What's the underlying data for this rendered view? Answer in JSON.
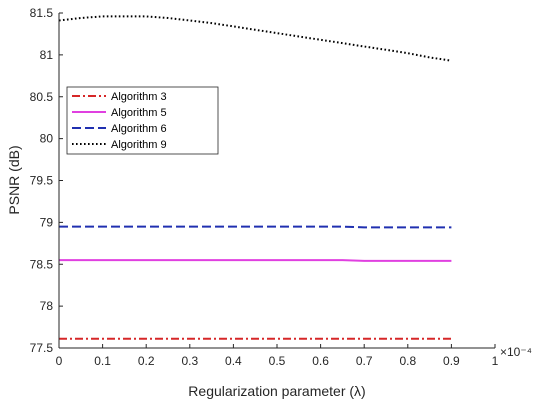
{
  "chart_data": {
    "type": "line",
    "title": "",
    "xlabel": "Regularization parameter (λ)",
    "ylabel": "PSNR (dB)",
    "x_multiplier": "×10⁻⁴",
    "xlim": [
      0,
      1
    ],
    "ylim": [
      77.5,
      81.5
    ],
    "x_ticks": [
      0,
      0.1,
      0.2,
      0.3,
      0.4,
      0.5,
      0.6,
      0.7,
      0.8,
      0.9,
      1
    ],
    "x_tick_labels": [
      "0",
      "0.1",
      "0.2",
      "0.3",
      "0.4",
      "0.5",
      "0.6",
      "0.7",
      "0.8",
      "0.9",
      "1"
    ],
    "y_ticks": [
      77.5,
      78,
      78.5,
      79,
      79.5,
      80,
      80.5,
      81,
      81.5
    ],
    "y_tick_labels": [
      "77.5",
      "78",
      "78.5",
      "79",
      "79.5",
      "80",
      "80.5",
      "81",
      "81.5"
    ],
    "grid": false,
    "legend_position": "upper-left",
    "x": [
      0,
      0.05,
      0.1,
      0.15,
      0.2,
      0.25,
      0.3,
      0.35,
      0.4,
      0.45,
      0.5,
      0.55,
      0.6,
      0.65,
      0.7,
      0.75,
      0.8,
      0.85,
      0.9
    ],
    "series": [
      {
        "name": "Algorithm 3",
        "color": "#d62728",
        "dash": "dashdot",
        "values": [
          77.61,
          77.61,
          77.61,
          77.61,
          77.61,
          77.61,
          77.61,
          77.61,
          77.61,
          77.61,
          77.61,
          77.61,
          77.61,
          77.61,
          77.61,
          77.61,
          77.61,
          77.61,
          77.61
        ]
      },
      {
        "name": "Algorithm 5",
        "color": "#e040e0",
        "dash": "solid",
        "values": [
          78.55,
          78.55,
          78.55,
          78.55,
          78.55,
          78.55,
          78.55,
          78.55,
          78.55,
          78.55,
          78.55,
          78.55,
          78.55,
          78.55,
          78.54,
          78.54,
          78.54,
          78.54,
          78.54
        ]
      },
      {
        "name": "Algorithm 6",
        "color": "#2030b0",
        "dash": "dashed",
        "values": [
          78.95,
          78.95,
          78.95,
          78.95,
          78.95,
          78.95,
          78.95,
          78.95,
          78.95,
          78.95,
          78.95,
          78.95,
          78.95,
          78.95,
          78.94,
          78.94,
          78.94,
          78.94,
          78.94
        ]
      },
      {
        "name": "Algorithm 9",
        "color": "#000000",
        "dash": "dotted",
        "values": [
          81.41,
          81.44,
          81.46,
          81.46,
          81.46,
          81.44,
          81.41,
          81.38,
          81.34,
          81.3,
          81.26,
          81.22,
          81.18,
          81.14,
          81.1,
          81.06,
          81.02,
          80.97,
          80.93
        ]
      }
    ]
  }
}
